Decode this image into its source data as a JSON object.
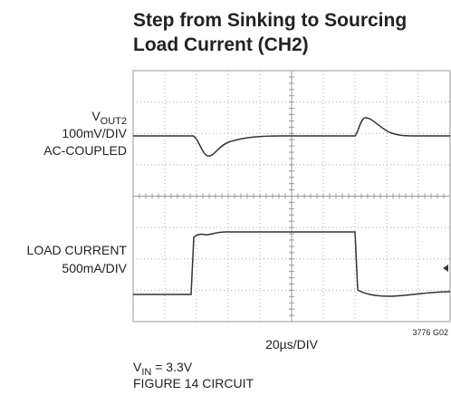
{
  "title": [
    "Step from Sinking to Sourcing",
    "Load Current (CH2)"
  ],
  "channel1": {
    "name": {
      "main": "V",
      "sub": "OUT2"
    },
    "scale": "100mV/DIV",
    "coupling": "AC-COUPLED"
  },
  "channel2": {
    "name": "LOAD CURRENT",
    "scale": "500mA/DIV"
  },
  "timebase": "20µs/DIV",
  "figure_id": "3776 G02",
  "notes": [
    {
      "main": "V",
      "sub": "IN",
      "rest": " = 3.3V"
    },
    "FIGURE 14 CIRCUIT"
  ]
}
